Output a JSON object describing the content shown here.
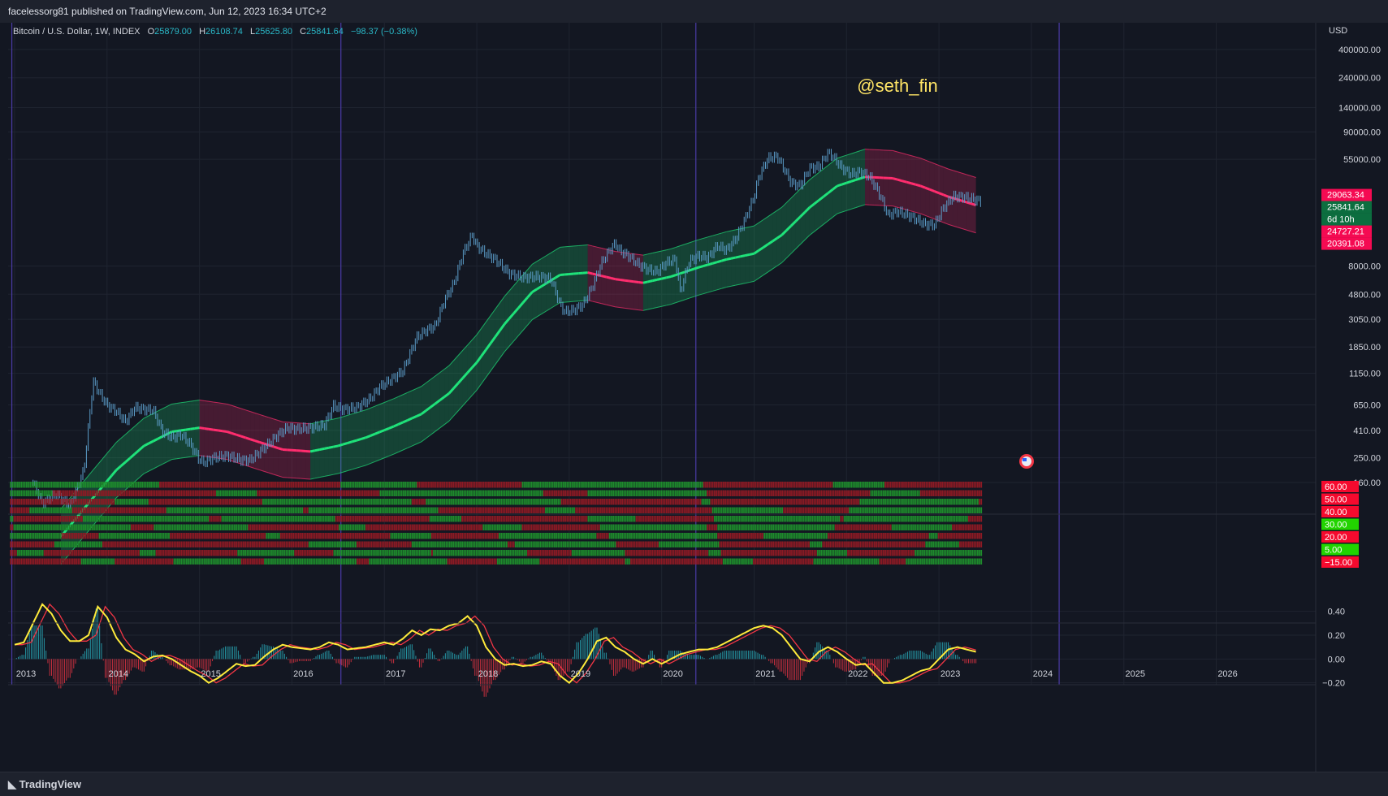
{
  "header": {
    "publish_line": "facelessorg81 published on TradingView.com, Jun 12, 2023 16:34 UTC+2"
  },
  "footer": {
    "brand": "TradingView"
  },
  "colors": {
    "background": "#131722",
    "candle": "#5b9cc8",
    "band_green": "#1fe37a",
    "band_red": "#ff2d6e",
    "watermark": "#ffe566",
    "osc_yellow": "#ffeb3b",
    "osc_red": "#f23645",
    "grid": "#1f2430",
    "vline": "#4a3ba6"
  },
  "legend": {
    "symbol": "Bitcoin / U.S. Dollar, 1W, INDEX",
    "o_label": "O",
    "o_value": "25879.00",
    "h_label": "H",
    "h_value": "26108.74",
    "l_label": "L",
    "l_value": "25625.80",
    "c_label": "C",
    "c_value": "25841.64",
    "change": "−98.37 (−0.38%)"
  },
  "watermark": "@seth_fin",
  "currency": "USD",
  "chart_data": [
    {
      "type": "line",
      "pane": "price",
      "scale": "log",
      "ylabel": "USD",
      "y_ticks": [
        160,
        250,
        410,
        650,
        1150,
        1850,
        3050,
        4800,
        8000,
        55000,
        90000,
        140000,
        240000,
        400000
      ],
      "y_tick_labels": [
        "160.00",
        "250.00",
        "410.00",
        "650.00",
        "1150.00",
        "1850.00",
        "3050.00",
        "4800.00",
        "8000.00",
        "55000.00",
        "90000.00",
        "140000.00",
        "240000.00",
        "400000.00"
      ],
      "x_ticks": [
        "2013",
        "2014",
        "2015",
        "2016",
        "2017",
        "2018",
        "2019",
        "2020",
        "2021",
        "2022",
        "2023",
        "2024",
        "2025",
        "2026"
      ],
      "vertical_lines": [
        2012.97,
        2016.53,
        2020.37,
        2024.3
      ],
      "series": [
        {
          "name": "",
          "kind": "close",
          "x": [
            2013.2,
            2013.3,
            2013.45,
            2013.6,
            2013.75,
            2013.85,
            2013.92,
            2014.0,
            2014.1,
            2014.2,
            2014.3,
            2014.4,
            2014.5,
            2014.6,
            2014.7,
            2014.8,
            2014.9,
            2015.0,
            2015.05,
            2015.15,
            2015.3,
            2015.45,
            2015.55,
            2015.7,
            2015.85,
            2015.95,
            2016.05,
            2016.2,
            2016.35,
            2016.45,
            2016.55,
            2016.7,
            2016.85,
            2016.95,
            2017.05,
            2017.2,
            2017.35,
            2017.45,
            2017.55,
            2017.65,
            2017.75,
            2017.85,
            2017.95,
            2018.0,
            2018.1,
            2018.2,
            2018.35,
            2018.5,
            2018.65,
            2018.8,
            2018.9,
            2018.95,
            2019.05,
            2019.15,
            2019.25,
            2019.35,
            2019.45,
            2019.5,
            2019.55,
            2019.65,
            2019.75,
            2019.85,
            2019.95,
            2020.05,
            2020.15,
            2020.2,
            2020.3,
            2020.4,
            2020.5,
            2020.6,
            2020.7,
            2020.8,
            2020.9,
            2021.0,
            2021.05,
            2021.15,
            2021.25,
            2021.3,
            2021.4,
            2021.5,
            2021.6,
            2021.7,
            2021.8,
            2021.85,
            2021.95,
            2022.05,
            2022.15,
            2022.25,
            2022.35,
            2022.45,
            2022.55,
            2022.7,
            2022.85,
            2022.95,
            2023.05,
            2023.15,
            2023.25,
            2023.35,
            2023.45
          ],
          "y": [
            160,
            110,
            130,
            105,
            200,
            1000,
            800,
            650,
            580,
            480,
            620,
            600,
            590,
            400,
            360,
            380,
            320,
            240,
            230,
            250,
            260,
            240,
            240,
            300,
            380,
            430,
            420,
            430,
            450,
            640,
            600,
            620,
            730,
            900,
            1000,
            1200,
            2200,
            2500,
            2700,
            4300,
            5800,
            10000,
            14000,
            11500,
            10000,
            9000,
            7000,
            6500,
            6600,
            6400,
            4000,
            3500,
            3600,
            4000,
            5500,
            8500,
            11000,
            12000,
            10500,
            9500,
            8200,
            7500,
            7200,
            8500,
            9000,
            5000,
            8800,
            9600,
            9300,
            11500,
            10700,
            13000,
            18500,
            28000,
            40000,
            56000,
            58000,
            50000,
            36000,
            34000,
            47000,
            48000,
            62000,
            58000,
            47000,
            42000,
            44000,
            40000,
            30000,
            20000,
            21500,
            19500,
            17000,
            16800,
            23000,
            28000,
            28000,
            27000,
            25841
          ]
        },
        {
          "name": "",
          "kind": "band_center",
          "x": [
            2013.5,
            2013.8,
            2014.1,
            2014.4,
            2014.7,
            2015.0,
            2015.3,
            2015.6,
            2015.9,
            2016.2,
            2016.5,
            2016.8,
            2017.1,
            2017.4,
            2017.7,
            2018.0,
            2018.3,
            2018.6,
            2018.9,
            2019.2,
            2019.5,
            2019.8,
            2020.1,
            2020.4,
            2020.7,
            2021.0,
            2021.3,
            2021.6,
            2021.9,
            2022.2,
            2022.5,
            2022.8,
            2023.1,
            2023.4
          ],
          "y": [
            60,
            110,
            200,
            310,
            400,
            430,
            400,
            340,
            290,
            280,
            310,
            360,
            440,
            550,
            800,
            1400,
            2800,
            5000,
            6800,
            7100,
            6300,
            5900,
            6600,
            7800,
            9000,
            10000,
            14000,
            23000,
            34000,
            40000,
            39000,
            34000,
            28000,
            24000
          ]
        }
      ]
    },
    {
      "type": "heatmap",
      "pane": "scoreboard",
      "rows": 10,
      "labels": [
        "60.00",
        "50.00",
        "40.00",
        "30.00",
        "20.00",
        "5.00",
        "−15.00"
      ],
      "label_colors": [
        "#f50a2e",
        "#f50a2e",
        "#f50a2e",
        "#22d400",
        "#f50a2e",
        "#22d400",
        "#f50a2e"
      ]
    },
    {
      "type": "line",
      "pane": "oscillator",
      "y_ticks": [
        0.4,
        0.2,
        0.0,
        -0.2
      ],
      "y_tick_labels": [
        "0.40",
        "0.20",
        "0.00",
        "−0.20"
      ],
      "series": [
        {
          "name": "",
          "x": [
            2013.0,
            2013.1,
            2013.2,
            2013.3,
            2013.4,
            2013.5,
            2013.6,
            2013.7,
            2013.8,
            2013.9,
            2014.0,
            2014.1,
            2014.2,
            2014.3,
            2014.4,
            2014.5,
            2014.6,
            2014.7,
            2014.8,
            2014.9,
            2015.0,
            2015.1,
            2015.2,
            2015.3,
            2015.4,
            2015.5,
            2015.6,
            2015.7,
            2015.8,
            2015.9,
            2016.0,
            2016.1,
            2016.2,
            2016.3,
            2016.4,
            2016.5,
            2016.6,
            2016.7,
            2016.8,
            2016.9,
            2017.0,
            2017.1,
            2017.2,
            2017.3,
            2017.4,
            2017.5,
            2017.6,
            2017.7,
            2017.8,
            2017.9,
            2018.0,
            2018.1,
            2018.2,
            2018.3,
            2018.4,
            2018.5,
            2018.6,
            2018.7,
            2018.8,
            2018.9,
            2019.0,
            2019.1,
            2019.2,
            2019.3,
            2019.4,
            2019.5,
            2019.6,
            2019.7,
            2019.8,
            2019.9,
            2020.0,
            2020.1,
            2020.2,
            2020.3,
            2020.4,
            2020.5,
            2020.6,
            2020.7,
            2020.8,
            2020.9,
            2021.0,
            2021.1,
            2021.2,
            2021.3,
            2021.4,
            2021.5,
            2021.6,
            2021.7,
            2021.8,
            2021.9,
            2022.0,
            2022.1,
            2022.2,
            2022.3,
            2022.4,
            2022.5,
            2022.6,
            2022.7,
            2022.8,
            2022.9,
            2023.0,
            2023.1,
            2023.2,
            2023.3,
            2023.4
          ],
          "y": [
            0.12,
            0.14,
            0.3,
            0.46,
            0.38,
            0.24,
            0.15,
            0.15,
            0.2,
            0.44,
            0.35,
            0.18,
            0.08,
            0.04,
            -0.02,
            0.02,
            0.03,
            0.0,
            -0.05,
            -0.1,
            -0.14,
            -0.2,
            -0.16,
            -0.1,
            -0.04,
            -0.06,
            -0.05,
            0.02,
            0.08,
            0.12,
            0.1,
            0.09,
            0.08,
            0.1,
            0.14,
            0.12,
            0.08,
            0.09,
            0.1,
            0.12,
            0.14,
            0.12,
            0.17,
            0.24,
            0.2,
            0.25,
            0.24,
            0.28,
            0.3,
            0.36,
            0.28,
            0.1,
            0.0,
            -0.05,
            -0.04,
            -0.06,
            -0.05,
            -0.02,
            -0.04,
            -0.14,
            -0.2,
            -0.12,
            0.0,
            0.15,
            0.18,
            0.1,
            0.06,
            0.0,
            -0.04,
            0.0,
            -0.04,
            0.0,
            0.04,
            0.06,
            0.08,
            0.08,
            0.1,
            0.14,
            0.18,
            0.22,
            0.26,
            0.28,
            0.26,
            0.2,
            0.1,
            0.0,
            -0.02,
            0.06,
            0.1,
            0.06,
            0.0,
            -0.05,
            -0.04,
            -0.12,
            -0.2,
            -0.2,
            -0.18,
            -0.14,
            -0.1,
            -0.08,
            0.0,
            0.08,
            0.1,
            0.08,
            0.06
          ]
        }
      ]
    }
  ],
  "price_tags": [
    {
      "text": "29063.34",
      "color": "#f50a52",
      "value": 29063.34
    },
    {
      "text": "25841.64",
      "color": "#0c6e3f",
      "value": 25841.64
    },
    {
      "text": "6d 10h",
      "color": "#0c6e3f",
      "value": 24100
    },
    {
      "text": "24727.21",
      "color": "#f50a52",
      "value": 24727.21
    },
    {
      "text": "20391.08",
      "color": "#f50a52",
      "value": 20391.08
    }
  ]
}
